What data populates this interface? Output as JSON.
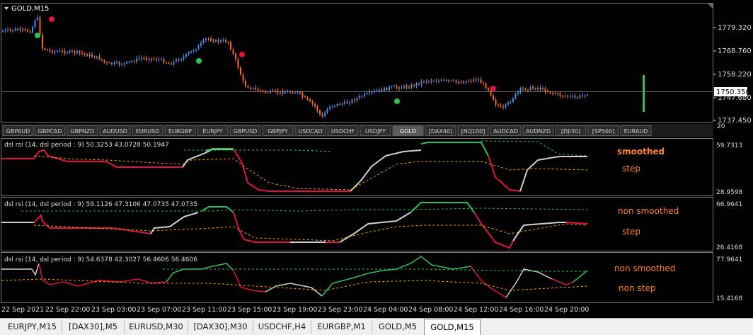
{
  "window": {
    "title": "GOLD,M15"
  },
  "main_chart": {
    "price_labels": [
      "1779.320",
      "1768.760",
      "1758.220",
      "1747.680",
      "1737.450"
    ],
    "current_price": "1750.350"
  },
  "symbol_bar": [
    "GBPAUD",
    "GBPCAD",
    "GBPNZD",
    "AUDUSD",
    "EURUSD",
    "EURGBP",
    "EURJPY",
    "GBPUSD",
    "GBPJPY",
    "USDCAD",
    "USDCHF",
    "USDJPY",
    "GOLD",
    "[DAX40]",
    "[NQ100]",
    "AUDCAD",
    "AUDNZD",
    "[DJI30]",
    "[SP500]",
    "EURAUD"
  ],
  "symbol_bar_active": "GOLD",
  "indicators": [
    {
      "header": "dsl rsi (14, dsl period : 9) 50.3253 43.0728 50.1947",
      "max": "59.7313",
      "min": "28.9598",
      "scale_top": "20",
      "note1": "smoothed",
      "note2": "step"
    },
    {
      "header": "dsl rsi (14, dsl period : 9) 59.1126 47.3106 47.0735 47.0735",
      "max": "66.9641",
      "min": "26.4168",
      "note1": "non smoothed",
      "note2": "step"
    },
    {
      "header": "dsl rsi (14, dsl period : 9) 54.6378 42.3027 56.4606 56.4606",
      "max": "77.9641",
      "min": "15.4168",
      "note1": "non smoothed",
      "note2": "non step"
    }
  ],
  "time_axis": [
    "22 Sep 2021",
    "22 Sep 22:00",
    "23 Sep 03:00",
    "23 Sep 07:00",
    "23 Sep 11:00",
    "23 Sep 15:00",
    "23 Sep 19:00",
    "23 Sep 23:00",
    "24 Sep 04:00",
    "24 Sep 08:00",
    "24 Sep 12:00",
    "24 Sep 16:00",
    "24 Sep 20:00"
  ],
  "chart_tabs": [
    "EURJPY,M15",
    "[DAX30],M5",
    "EURUSD,M30",
    "[DAX30],M30",
    "USDCHF,H4",
    "EURGBP,M1",
    "GOLD,M5",
    "GOLD,M15"
  ],
  "chart_tabs_active": "GOLD,M15",
  "colors": {
    "bull": "#3d8ef0",
    "bear": "#f06a2c",
    "rsi_up": "#2ec05a",
    "rsi_down": "#e0143c",
    "rsi_neutral": "#cfcfcf",
    "level_up": "#2ec05a",
    "level_down": "#ffa500",
    "note": "#ff7f24",
    "signal_up": "#2ec05a",
    "signal_down": "#e0143c"
  }
}
